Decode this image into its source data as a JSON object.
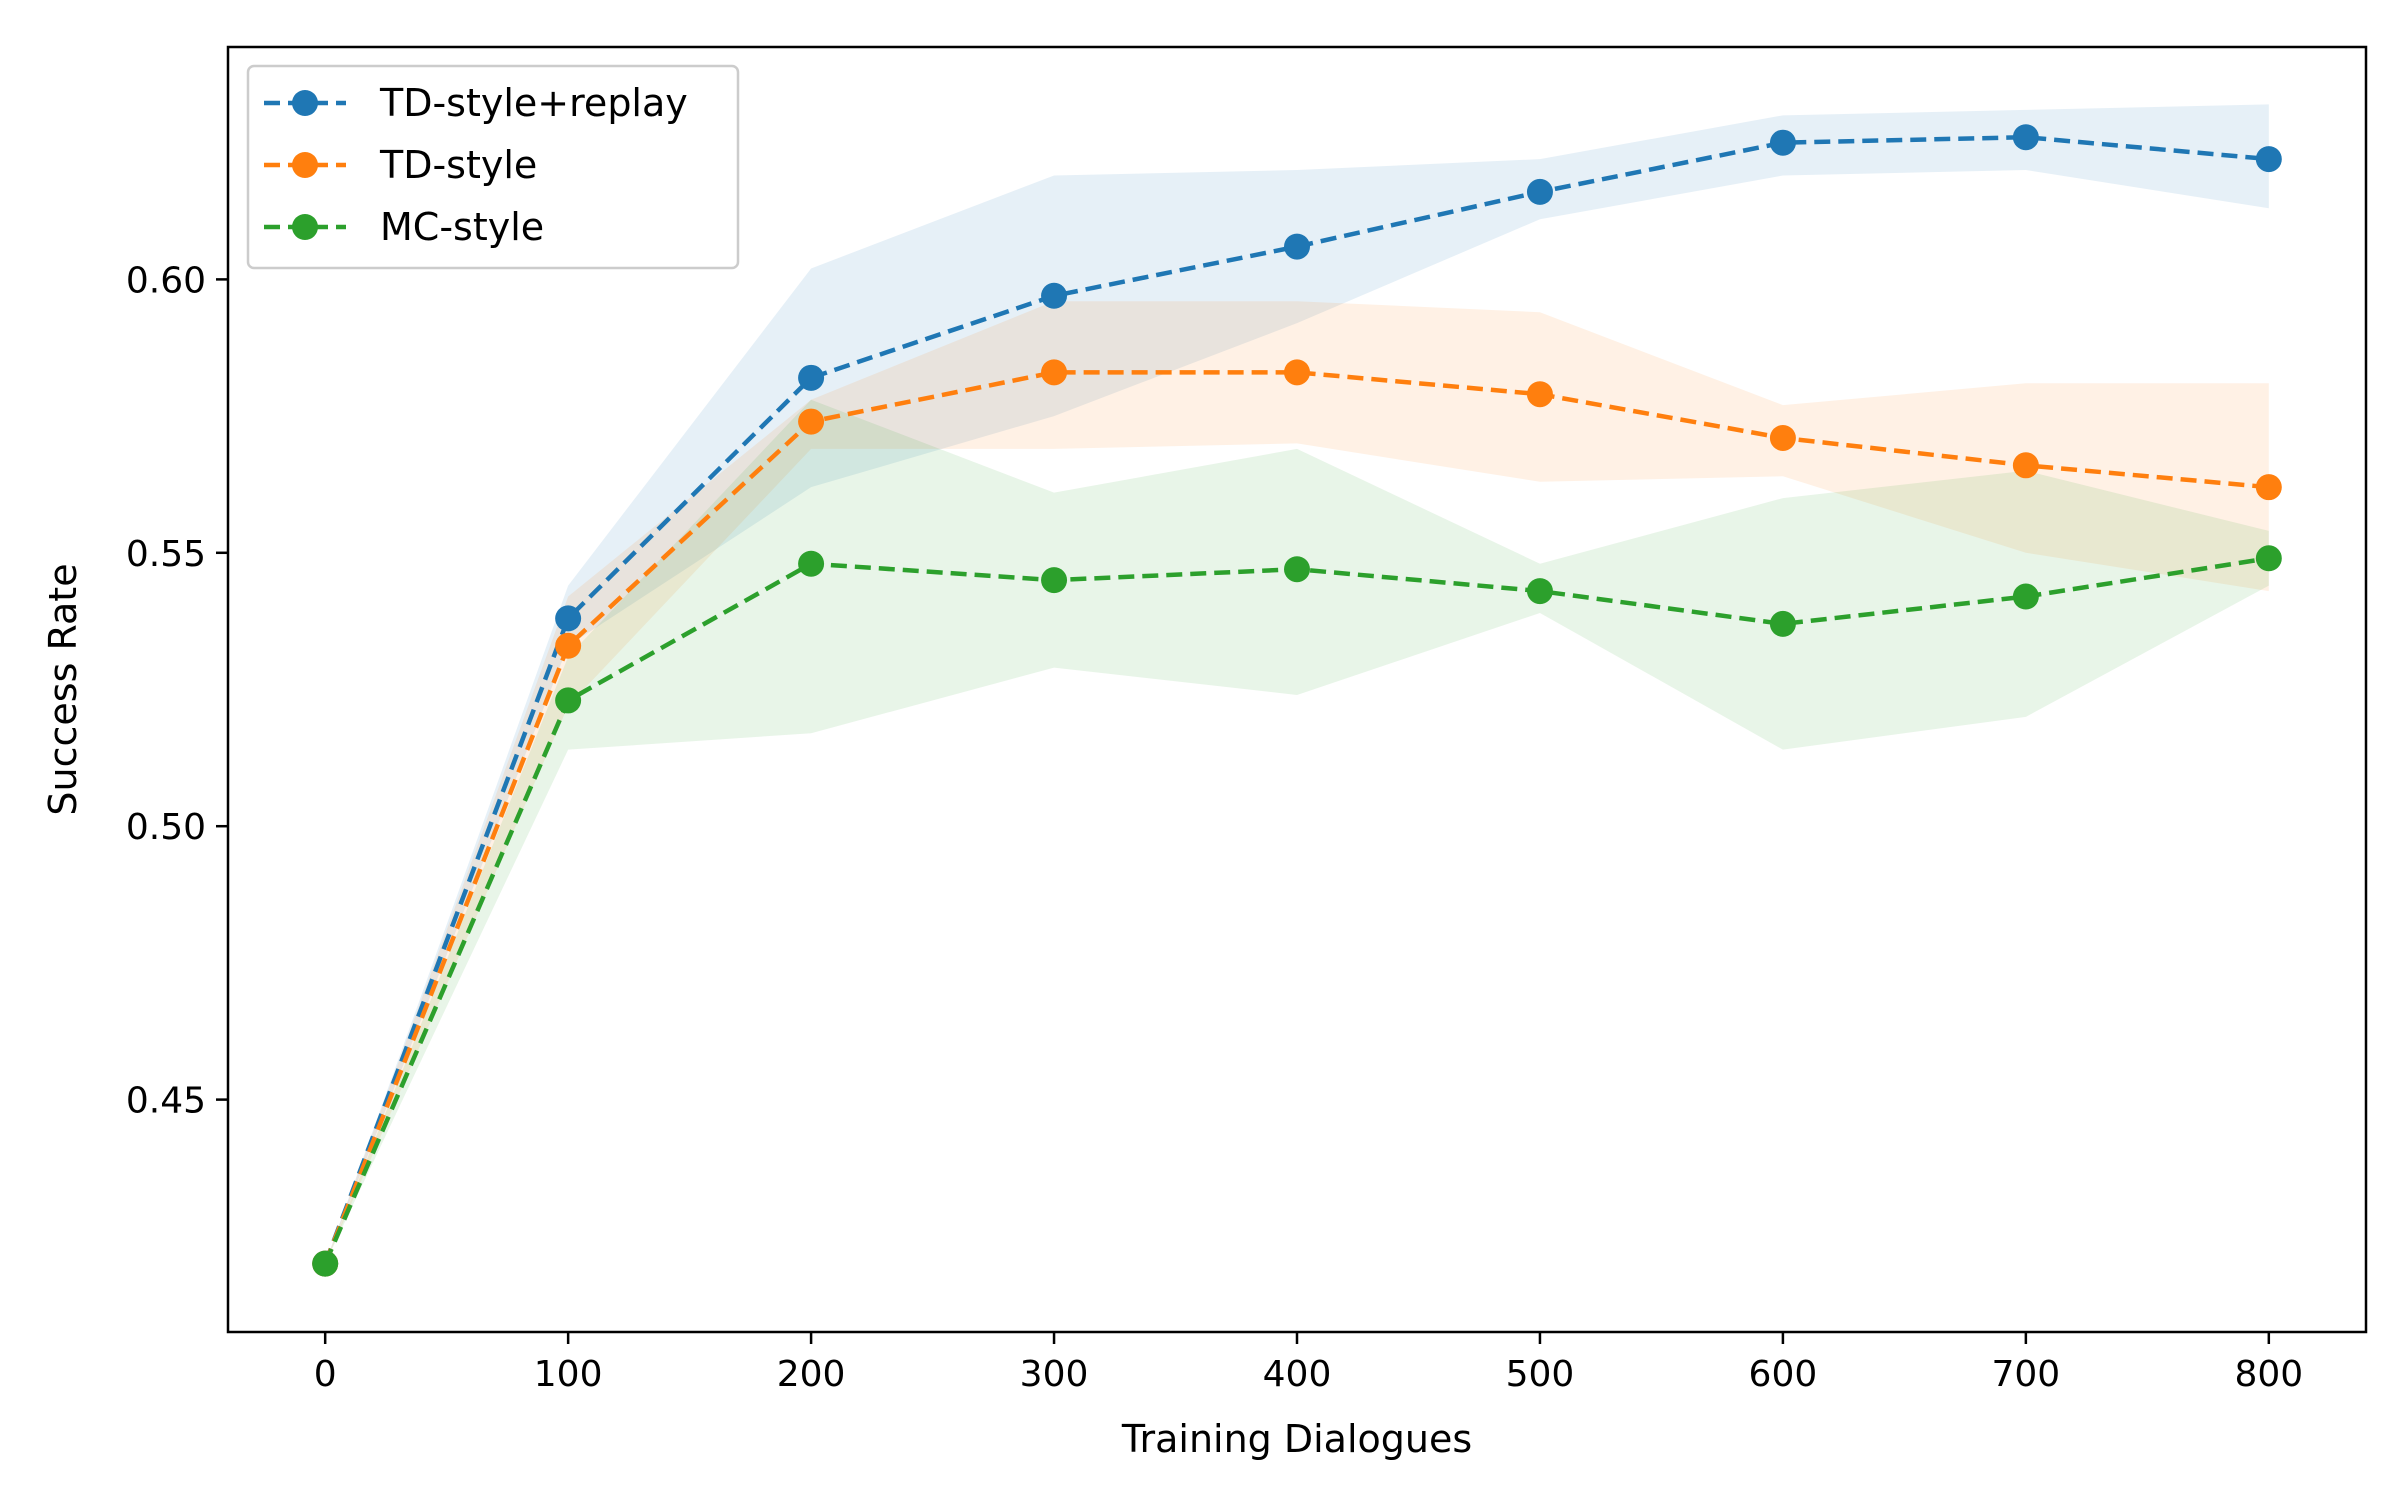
{
  "chart_data": {
    "type": "line",
    "title": "",
    "xlabel": "Training Dialogues",
    "ylabel": "Success Rate",
    "xlim": [
      -40,
      840
    ],
    "ylim": [
      0.4075,
      0.6425
    ],
    "xticks": [
      0,
      100,
      200,
      300,
      400,
      500,
      600,
      700,
      800
    ],
    "yticks": [
      0.45,
      0.5,
      0.55,
      0.6
    ],
    "x": [
      0,
      100,
      200,
      300,
      400,
      500,
      600,
      700,
      800
    ],
    "legend_position": "top-left",
    "series": [
      {
        "name": "TD-style+replay",
        "color": "#1f77b4",
        "values": [
          0.42,
          0.538,
          0.582,
          0.597,
          0.606,
          0.616,
          0.625,
          0.626,
          0.622
        ],
        "lower": [
          0.42,
          0.533,
          0.562,
          0.575,
          0.592,
          0.611,
          0.619,
          0.62,
          0.613
        ],
        "upper": [
          0.42,
          0.544,
          0.602,
          0.619,
          0.62,
          0.622,
          0.63,
          0.631,
          0.632
        ]
      },
      {
        "name": "TD-style",
        "color": "#ff7f0e",
        "values": [
          0.42,
          0.533,
          0.574,
          0.583,
          0.583,
          0.579,
          0.571,
          0.566,
          0.562
        ],
        "lower": [
          0.42,
          0.522,
          0.569,
          0.569,
          0.57,
          0.563,
          0.564,
          0.55,
          0.543
        ],
        "upper": [
          0.42,
          0.542,
          0.578,
          0.596,
          0.596,
          0.594,
          0.577,
          0.581,
          0.581
        ]
      },
      {
        "name": "MC-style",
        "color": "#2ca02c",
        "values": [
          0.42,
          0.523,
          0.548,
          0.545,
          0.547,
          0.543,
          0.537,
          0.542,
          0.549
        ],
        "lower": [
          0.42,
          0.514,
          0.517,
          0.529,
          0.524,
          0.539,
          0.514,
          0.52,
          0.544
        ],
        "upper": [
          0.42,
          0.531,
          0.578,
          0.561,
          0.569,
          0.548,
          0.56,
          0.565,
          0.554
        ]
      }
    ]
  }
}
